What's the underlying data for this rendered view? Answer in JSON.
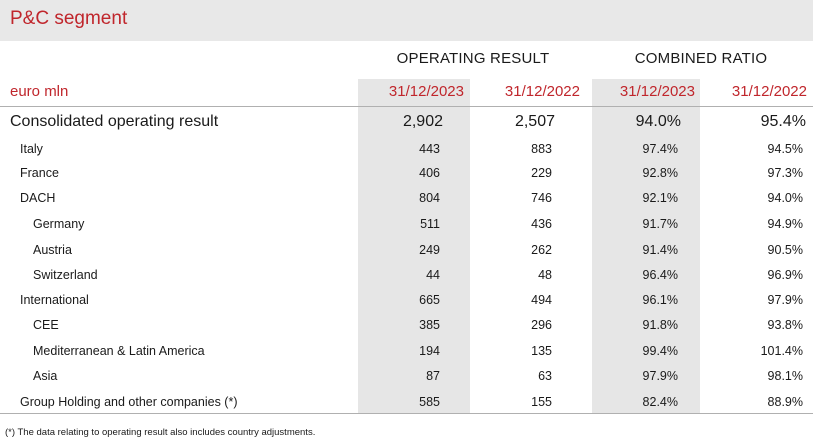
{
  "title": "P&C segment",
  "groups": {
    "operating_result": "OPERATING RESULT",
    "combined_ratio": "COMBINED RATIO"
  },
  "header": {
    "unit": "euro mln",
    "dates": [
      "31/12/2023",
      "31/12/2022",
      "31/12/2023",
      "31/12/2022"
    ]
  },
  "rows": [
    {
      "name": "Consolidated operating result",
      "or_2023": "2,902",
      "or_2022": "2,507",
      "cr_2023": "94.0%",
      "cr_2022": "95.4%"
    },
    {
      "name": "Italy",
      "or_2023": "443",
      "or_2022": "883",
      "cr_2023": "97.4%",
      "cr_2022": "94.5%"
    },
    {
      "name": "France",
      "or_2023": "406",
      "or_2022": "229",
      "cr_2023": "92.8%",
      "cr_2022": "97.3%"
    },
    {
      "name": "DACH",
      "or_2023": "804",
      "or_2022": "746",
      "cr_2023": "92.1%",
      "cr_2022": "94.0%"
    },
    {
      "name": "Germany",
      "or_2023": "511",
      "or_2022": "436",
      "cr_2023": "91.7%",
      "cr_2022": "94.9%"
    },
    {
      "name": "Austria",
      "or_2023": "249",
      "or_2022": "262",
      "cr_2023": "91.4%",
      "cr_2022": "90.5%"
    },
    {
      "name": "Switzerland",
      "or_2023": "44",
      "or_2022": "48",
      "cr_2023": "96.4%",
      "cr_2022": "96.9%"
    },
    {
      "name": "International",
      "or_2023": "665",
      "or_2022": "494",
      "cr_2023": "96.1%",
      "cr_2022": "97.9%"
    },
    {
      "name": "CEE",
      "or_2023": "385",
      "or_2022": "296",
      "cr_2023": "91.8%",
      "cr_2022": "93.8%"
    },
    {
      "name": "Mediterranean & Latin America",
      "or_2023": "194",
      "or_2022": "135",
      "cr_2023": "99.4%",
      "cr_2022": "101.4%"
    },
    {
      "name": "Asia",
      "or_2023": "87",
      "or_2022": "63",
      "cr_2023": "97.9%",
      "cr_2022": "98.1%"
    },
    {
      "name": "Group Holding and other companies (*)",
      "or_2023": "585",
      "or_2022": "155",
      "cr_2023": "82.4%",
      "cr_2022": "88.9%"
    }
  ],
  "footnote": "(*) The data relating to operating result also includes country adjustments."
}
